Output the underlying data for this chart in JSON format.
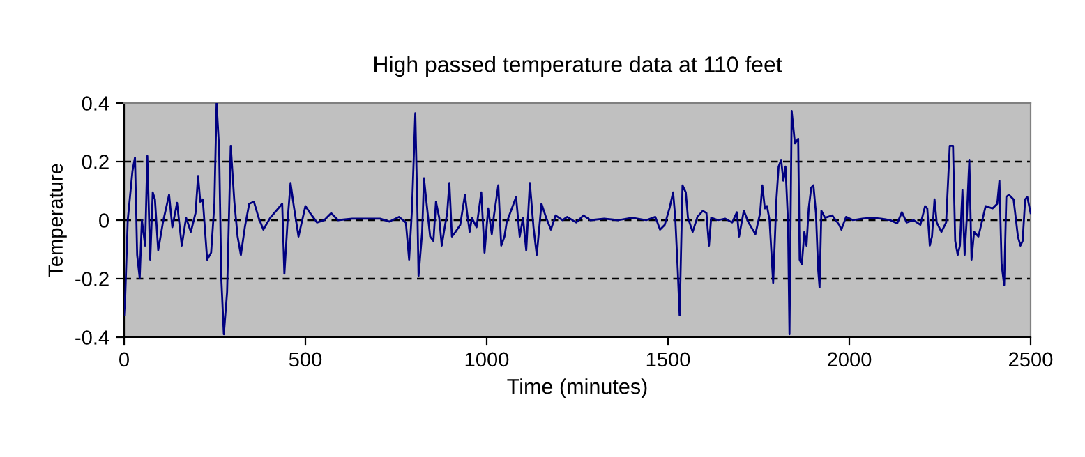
{
  "chart_data": {
    "type": "line",
    "title": "High passed temperature data at 110 feet",
    "xlabel": "Time (minutes)",
    "ylabel": "Temperature",
    "xlim": [
      0,
      2500
    ],
    "xticks": [
      0,
      500,
      1000,
      1500,
      2000,
      2500
    ],
    "ylim": [
      -0.4,
      0.4
    ],
    "yticks": [
      -0.4,
      -0.2,
      0,
      0.2,
      0.4
    ],
    "grid": "y",
    "legend": false,
    "marker": "none",
    "line_style": "solid",
    "series": [
      {
        "color": "#000080",
        "x": [
          0,
          3,
          10,
          23,
          30,
          36,
          43,
          49,
          58,
          64,
          72,
          79,
          85,
          94,
          107,
          124,
          133,
          146,
          159,
          171,
          184,
          197,
          204,
          210,
          217,
          229,
          240,
          249,
          255,
          262,
          268,
          275,
          284,
          294,
          304,
          313,
          322,
          333,
          345,
          358,
          371,
          384,
          403,
          436,
          442,
          451,
          459,
          468,
          481,
          500,
          513,
          532,
          552,
          571,
          590,
          629,
          668,
          706,
          732,
          758,
          777,
          786,
          794,
          803,
          809,
          812,
          822,
          827,
          835,
          844,
          853,
          860,
          869,
          876,
          882,
          891,
          897,
          904,
          914,
          927,
          940,
          946,
          953,
          959,
          972,
          985,
          994,
          1004,
          1014,
          1020,
          1032,
          1040,
          1049,
          1055,
          1081,
          1091,
          1100,
          1109,
          1119,
          1129,
          1138,
          1151,
          1164,
          1177,
          1190,
          1209,
          1222,
          1247,
          1267,
          1286,
          1324,
          1363,
          1401,
          1440,
          1465,
          1478,
          1491,
          1504,
          1514,
          1520,
          1527,
          1532,
          1540,
          1549,
          1555,
          1568,
          1581,
          1596,
          1606,
          1613,
          1619,
          1638,
          1658,
          1677,
          1690,
          1696,
          1709,
          1722,
          1741,
          1754,
          1760,
          1767,
          1773,
          1780,
          1790,
          1799,
          1805,
          1812,
          1818,
          1824,
          1831,
          1835,
          1841,
          1850,
          1859,
          1863,
          1869,
          1876,
          1882,
          1888,
          1895,
          1901,
          1908,
          1914,
          1918,
          1923,
          1933,
          1953,
          1972,
          1978,
          1991,
          2010,
          2036,
          2062,
          2087,
          2113,
          2132,
          2145,
          2158,
          2177,
          2196,
          2209,
          2215,
          2222,
          2228,
          2235,
          2241,
          2254,
          2267,
          2277,
          2286,
          2292,
          2299,
          2305,
          2312,
          2318,
          2324,
          2331,
          2337,
          2344,
          2356,
          2376,
          2395,
          2408,
          2414,
          2420,
          2427,
          2433,
          2440,
          2453,
          2465,
          2472,
          2478,
          2485,
          2491,
          2500
        ],
        "values": [
          -0.325,
          -0.262,
          0,
          0.167,
          0.214,
          -0.119,
          -0.198,
          0,
          -0.087,
          0.219,
          -0.135,
          0.095,
          0.071,
          -0.103,
          -0.008,
          0.087,
          -0.024,
          0.059,
          -0.087,
          0.008,
          -0.04,
          0.024,
          0.151,
          0.063,
          0.071,
          -0.135,
          -0.111,
          0.056,
          0.4,
          0.246,
          -0.198,
          -0.39,
          -0.246,
          0.254,
          0.063,
          -0.056,
          -0.119,
          -0.024,
          0.056,
          0.063,
          0.008,
          -0.032,
          0.008,
          0.056,
          -0.183,
          0,
          0.127,
          0.048,
          -0.056,
          0.048,
          0.024,
          -0.008,
          0,
          0.024,
          0,
          0.005,
          0.005,
          0.005,
          -0.005,
          0.011,
          -0.008,
          -0.135,
          0.04,
          0.365,
          0.024,
          -0.19,
          -0.04,
          0.143,
          0.048,
          -0.056,
          -0.071,
          0.063,
          0.008,
          -0.087,
          -0.04,
          0.024,
          0.127,
          -0.056,
          -0.04,
          -0.016,
          0.087,
          0.024,
          -0.04,
          0.008,
          -0.024,
          0.095,
          -0.111,
          0.04,
          -0.048,
          0.016,
          0.119,
          -0.087,
          -0.056,
          -0.008,
          0.079,
          -0.056,
          0.008,
          -0.103,
          0.127,
          -0.024,
          -0.119,
          0.056,
          0.008,
          -0.032,
          0.016,
          0,
          0.011,
          -0.008,
          0.016,
          0,
          0.005,
          0,
          0.008,
          0,
          0.011,
          -0.032,
          -0.016,
          0.04,
          0.095,
          0.008,
          -0.175,
          -0.325,
          0.119,
          0.095,
          0.008,
          -0.04,
          0.011,
          0.032,
          0.024,
          -0.087,
          0.008,
          0,
          0.005,
          -0.008,
          0.027,
          -0.056,
          0.032,
          -0.008,
          -0.048,
          0.024,
          0.119,
          0.04,
          0.048,
          0,
          -0.214,
          0.071,
          0.183,
          0.206,
          0.135,
          0.183,
          -0.008,
          -0.39,
          0.373,
          0.262,
          0.278,
          -0.135,
          -0.151,
          -0.04,
          -0.087,
          0.04,
          0.111,
          0.119,
          0.024,
          -0.167,
          -0.23,
          0.032,
          0.008,
          0.016,
          -0.016,
          -0.032,
          0.011,
          0,
          0.005,
          0.008,
          0.005,
          0,
          -0.011,
          0.027,
          -0.008,
          0,
          -0.016,
          0.048,
          0.04,
          -0.087,
          -0.056,
          0.071,
          -0.008,
          -0.04,
          -0.008,
          0.254,
          0.254,
          -0.071,
          -0.119,
          -0.087,
          0.103,
          -0.119,
          0.008,
          0.206,
          -0.135,
          -0.04,
          -0.056,
          0.048,
          0.04,
          0.056,
          0.135,
          -0.151,
          -0.222,
          0.079,
          0.087,
          0.071,
          -0.056,
          -0.087,
          -0.071,
          0.071,
          0.079,
          0.024
        ]
      }
    ]
  }
}
